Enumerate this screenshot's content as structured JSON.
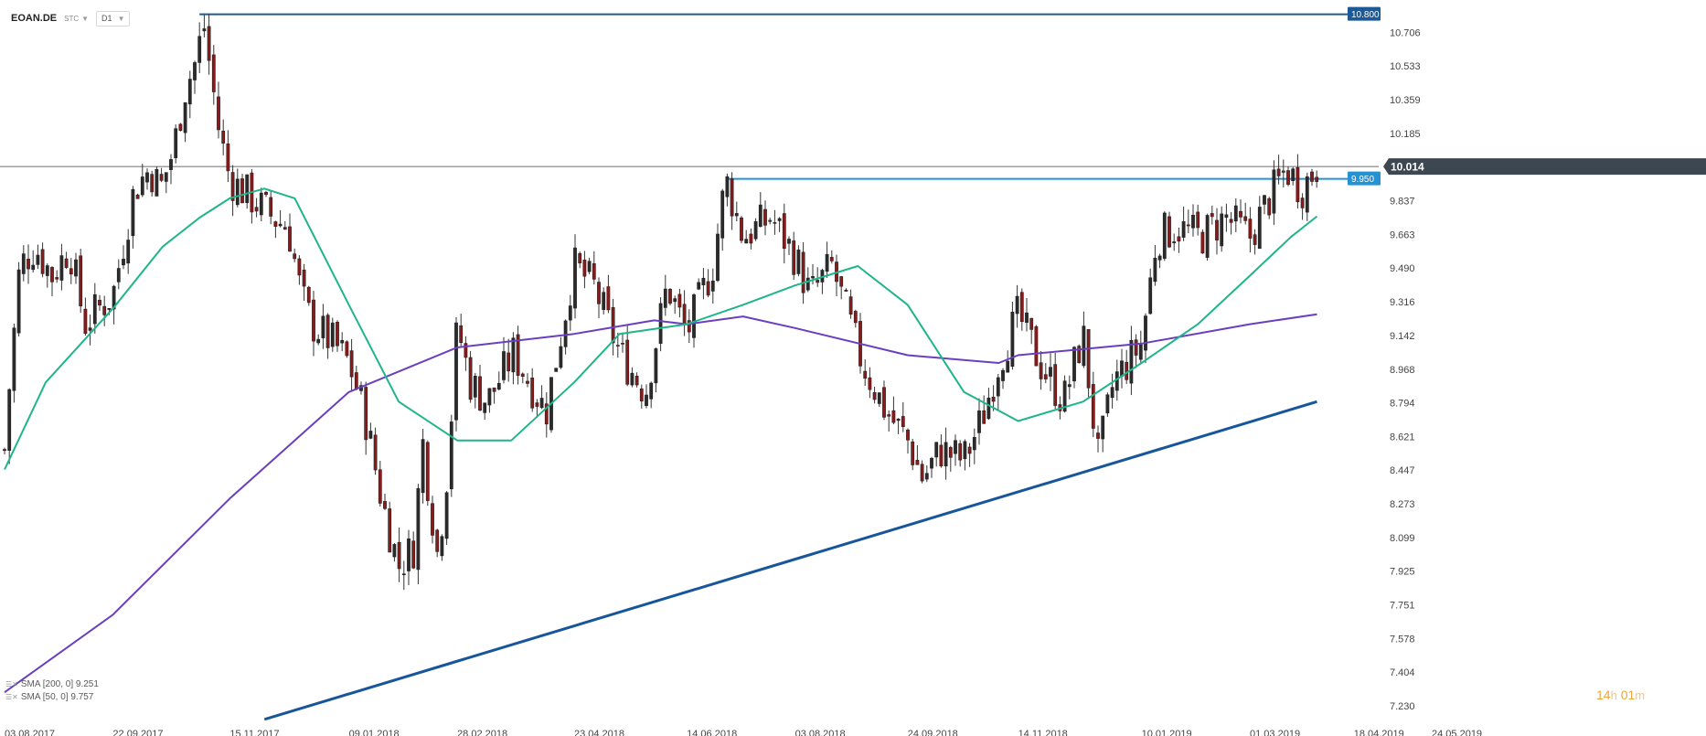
{
  "toolbar": {
    "symbol": "EOAN.DE",
    "chart_type": "STC",
    "timeframe": "D1"
  },
  "colors": {
    "bull_candle": "#2b2b2b",
    "bear_candle": "#8b1a1a",
    "sma50": "#1fb58a",
    "sma200": "#6a3fbf",
    "resistance_top": "#1b5a96",
    "resistance_mid": "#2592d4",
    "trendline": "#17569a",
    "current_price_tag": "#3c4752",
    "countdown": "#f0a63a"
  },
  "legend": [
    {
      "label": "SMA [200, 0] 9.251"
    },
    {
      "label": "SMA [50, 0] 9.757"
    }
  ],
  "countdown": {
    "hours": "14",
    "h_unit": "h",
    "minutes": "01",
    "m_unit": "m"
  },
  "chart_data": {
    "type": "line",
    "title": "",
    "y_ticks": [
      "10.706",
      "10.533",
      "10.359",
      "10.185",
      "9.837",
      "9.663",
      "9.490",
      "9.316",
      "9.142",
      "8.968",
      "8.794",
      "8.621",
      "8.447",
      "8.273",
      "8.099",
      "7.925",
      "7.751",
      "7.578",
      "7.404",
      "7.230"
    ],
    "x_ticks": [
      "03.08.2017",
      "22.09.2017",
      "15.11.2017",
      "09.01.2018",
      "28.02.2018",
      "23.04.2018",
      "14.06.2018",
      "03.08.2018",
      "24.09.2018",
      "14.11.2018",
      "10.01.2019",
      "01.03.2019",
      "18.04.2019",
      "24.05.2019"
    ],
    "ylim": [
      7.23,
      10.8
    ],
    "current_price": "10.014",
    "levels": [
      {
        "label": "10.800",
        "value": 10.8,
        "start_date": "01.11.2017"
      },
      {
        "label": "9.950",
        "value": 9.95,
        "start_date": "02.07.2018"
      }
    ],
    "trendline": {
      "from": {
        "date": "01.12.2017",
        "value": 7.16
      },
      "to": {
        "date": "01.04.2019",
        "value": 8.8
      }
    },
    "price_path": [
      {
        "date": "03.08.2017",
        "value": 8.55
      },
      {
        "date": "05.08.2017",
        "value": 8.85
      },
      {
        "date": "10.08.2017",
        "value": 9.5
      },
      {
        "date": "17.08.2017",
        "value": 9.6
      },
      {
        "date": "25.08.2017",
        "value": 9.45
      },
      {
        "date": "02.09.2017",
        "value": 9.6
      },
      {
        "date": "09.09.2017",
        "value": 9.2
      },
      {
        "date": "17.09.2017",
        "value": 9.3
      },
      {
        "date": "22.09.2017",
        "value": 9.35
      },
      {
        "date": "02.10.2017",
        "value": 9.9
      },
      {
        "date": "09.10.2017",
        "value": 10.0
      },
      {
        "date": "14.10.2017",
        "value": 9.9
      },
      {
        "date": "20.10.2017",
        "value": 10.1
      },
      {
        "date": "25.10.2017",
        "value": 10.4
      },
      {
        "date": "30.10.2017",
        "value": 10.55
      },
      {
        "date": "03.11.2017",
        "value": 10.75
      },
      {
        "date": "10.11.2017",
        "value": 10.2
      },
      {
        "date": "15.11.2017",
        "value": 9.95
      },
      {
        "date": "25.11.2017",
        "value": 9.85
      },
      {
        "date": "05.12.2017",
        "value": 9.75
      },
      {
        "date": "12.12.2017",
        "value": 9.7
      },
      {
        "date": "18.12.2017",
        "value": 9.35
      },
      {
        "date": "23.12.2017",
        "value": 9.2
      },
      {
        "date": "02.01.2018",
        "value": 9.1
      },
      {
        "date": "09.01.2018",
        "value": 9.0
      },
      {
        "date": "16.01.2018",
        "value": 8.75
      },
      {
        "date": "24.01.2018",
        "value": 8.3
      },
      {
        "date": "01.02.2018",
        "value": 7.95
      },
      {
        "date": "08.02.2018",
        "value": 8.05
      },
      {
        "date": "12.02.2018",
        "value": 8.6
      },
      {
        "date": "19.02.2018",
        "value": 8.0
      },
      {
        "date": "24.02.2018",
        "value": 8.5
      },
      {
        "date": "28.02.2018",
        "value": 9.2
      },
      {
        "date": "06.03.2018",
        "value": 8.9
      },
      {
        "date": "14.03.2018",
        "value": 8.8
      },
      {
        "date": "26.03.2018",
        "value": 9.05
      },
      {
        "date": "10.04.2018",
        "value": 8.75
      },
      {
        "date": "23.04.2018",
        "value": 9.5
      },
      {
        "date": "02.05.2018",
        "value": 9.4
      },
      {
        "date": "14.05.2018",
        "value": 9.05
      },
      {
        "date": "26.05.2018",
        "value": 8.85
      },
      {
        "date": "05.06.2018",
        "value": 9.4
      },
      {
        "date": "14.06.2018",
        "value": 9.15
      },
      {
        "date": "26.06.2018",
        "value": 9.5
      },
      {
        "date": "02.07.2018",
        "value": 9.95
      },
      {
        "date": "10.07.2018",
        "value": 9.65
      },
      {
        "date": "23.07.2018",
        "value": 9.75
      },
      {
        "date": "03.08.2018",
        "value": 9.55
      },
      {
        "date": "10.08.2018",
        "value": 9.35
      },
      {
        "date": "20.08.2018",
        "value": 9.5
      },
      {
        "date": "03.09.2018",
        "value": 9.0
      },
      {
        "date": "14.09.2018",
        "value": 8.75
      },
      {
        "date": "24.09.2018",
        "value": 8.6
      },
      {
        "date": "01.10.2018",
        "value": 8.4
      },
      {
        "date": "09.10.2018",
        "value": 8.55
      },
      {
        "date": "20.10.2018",
        "value": 8.5
      },
      {
        "date": "28.10.2018",
        "value": 8.7
      },
      {
        "date": "05.11.2018",
        "value": 9.0
      },
      {
        "date": "14.11.2018",
        "value": 9.25
      },
      {
        "date": "24.11.2018",
        "value": 9.0
      },
      {
        "date": "05.12.2018",
        "value": 8.8
      },
      {
        "date": "14.12.2018",
        "value": 9.15
      },
      {
        "date": "21.12.2018",
        "value": 8.5
      },
      {
        "date": "28.12.2018",
        "value": 8.9
      },
      {
        "date": "10.01.2019",
        "value": 9.1
      },
      {
        "date": "17.01.2019",
        "value": 9.65
      },
      {
        "date": "26.01.2019",
        "value": 9.7
      },
      {
        "date": "06.02.2019",
        "value": 9.65
      },
      {
        "date": "18.02.2019",
        "value": 9.75
      },
      {
        "date": "01.03.2019",
        "value": 9.65
      },
      {
        "date": "10.03.2019",
        "value": 9.85
      },
      {
        "date": "18.03.2019",
        "value": 10.0
      },
      {
        "date": "25.03.2019",
        "value": 9.9
      },
      {
        "date": "01.04.2019",
        "value": 10.014
      }
    ],
    "series": [
      {
        "name": "SMA [200, 0] 9.251",
        "points": [
          {
            "date": "03.08.2017",
            "value": 7.3
          },
          {
            "date": "22.09.2017",
            "value": 7.7
          },
          {
            "date": "15.11.2017",
            "value": 8.3
          },
          {
            "date": "09.01.2018",
            "value": 8.85
          },
          {
            "date": "28.02.2018",
            "value": 9.08
          },
          {
            "date": "23.04.2018",
            "value": 9.15
          },
          {
            "date": "30.05.2018",
            "value": 9.22
          },
          {
            "date": "14.06.2018",
            "value": 9.2
          },
          {
            "date": "10.07.2018",
            "value": 9.24
          },
          {
            "date": "03.08.2018",
            "value": 9.18
          },
          {
            "date": "24.09.2018",
            "value": 9.04
          },
          {
            "date": "05.11.2018",
            "value": 9.0
          },
          {
            "date": "14.11.2018",
            "value": 9.04
          },
          {
            "date": "10.01.2019",
            "value": 9.1
          },
          {
            "date": "01.03.2019",
            "value": 9.2
          },
          {
            "date": "01.04.2019",
            "value": 9.251
          }
        ]
      },
      {
        "name": "SMA [50, 0] 9.757",
        "points": [
          {
            "date": "03.08.2017",
            "value": 8.45
          },
          {
            "date": "22.08.2017",
            "value": 8.9
          },
          {
            "date": "22.09.2017",
            "value": 9.28
          },
          {
            "date": "15.10.2017",
            "value": 9.6
          },
          {
            "date": "01.11.2017",
            "value": 9.75
          },
          {
            "date": "15.11.2017",
            "value": 9.85
          },
          {
            "date": "01.12.2017",
            "value": 9.9
          },
          {
            "date": "15.12.2017",
            "value": 9.85
          },
          {
            "date": "09.01.2018",
            "value": 9.3
          },
          {
            "date": "01.02.2018",
            "value": 8.8
          },
          {
            "date": "28.02.2018",
            "value": 8.6
          },
          {
            "date": "25.03.2018",
            "value": 8.6
          },
          {
            "date": "23.04.2018",
            "value": 8.9
          },
          {
            "date": "14.05.2018",
            "value": 9.15
          },
          {
            "date": "14.06.2018",
            "value": 9.2
          },
          {
            "date": "10.07.2018",
            "value": 9.3
          },
          {
            "date": "03.08.2018",
            "value": 9.4
          },
          {
            "date": "01.09.2018",
            "value": 9.5
          },
          {
            "date": "24.09.2018",
            "value": 9.3
          },
          {
            "date": "20.10.2018",
            "value": 8.85
          },
          {
            "date": "14.11.2018",
            "value": 8.7
          },
          {
            "date": "14.12.2018",
            "value": 8.8
          },
          {
            "date": "10.01.2019",
            "value": 9.0
          },
          {
            "date": "05.02.2019",
            "value": 9.2
          },
          {
            "date": "01.03.2019",
            "value": 9.45
          },
          {
            "date": "20.03.2019",
            "value": 9.65
          },
          {
            "date": "01.04.2019",
            "value": 9.757
          }
        ]
      }
    ]
  }
}
